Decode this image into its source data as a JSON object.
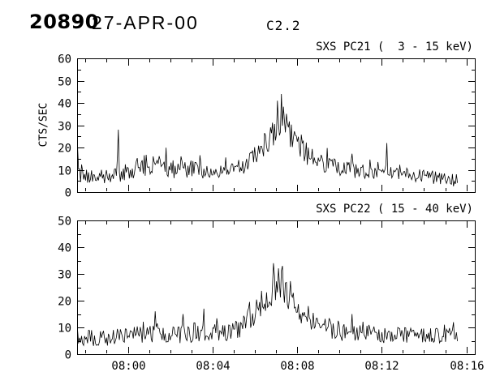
{
  "header": {
    "event_number": "20890",
    "date": "27-APR-00",
    "goes_class": "C2.2"
  },
  "chart_data": [
    {
      "type": "line",
      "series_name": "pc21-lightcurve",
      "title": "SXS PC21 (  3 - 15 keV)",
      "ylabel": "CTS/SEC",
      "ylim": [
        0,
        60
      ],
      "yticks": [
        0,
        10,
        20,
        30,
        40,
        50,
        60
      ],
      "ytick_labels": [
        "0",
        "10",
        "20",
        "30",
        "40",
        "50",
        "60"
      ],
      "yminor_step": 5,
      "xlim_minutes": [
        -2.4,
        16.4
      ],
      "xticks_minutes": [
        0,
        4,
        8,
        12,
        16
      ],
      "xtick_labels": [
        "08:00",
        "08:04",
        "08:08",
        "08:12",
        "08:16"
      ],
      "show_xtick_labels": false,
      "xminor_step_minutes": 1,
      "series_end_minute": 15.6,
      "sample_step_minutes": 0.047,
      "noise_seed": 20890,
      "line_color": "#000000",
      "grid": false,
      "envelope": [
        [
          -2.4,
          11,
          9
        ],
        [
          -2.15,
          7,
          3
        ],
        [
          -1.0,
          7,
          3
        ],
        [
          0.0,
          9,
          4
        ],
        [
          0.7,
          12,
          5
        ],
        [
          1.6,
          12,
          5
        ],
        [
          2.3,
          10,
          4
        ],
        [
          3.2,
          10,
          4
        ],
        [
          4.0,
          9,
          3
        ],
        [
          5.0,
          10,
          4
        ],
        [
          5.6,
          12,
          4
        ],
        [
          6.0,
          16,
          5
        ],
        [
          6.5,
          22,
          6
        ],
        [
          7.0,
          28,
          7
        ],
        [
          7.3,
          31,
          9
        ],
        [
          7.6,
          28,
          7
        ],
        [
          8.0,
          23,
          6
        ],
        [
          8.5,
          17,
          5
        ],
        [
          9.0,
          14,
          4
        ],
        [
          9.5,
          12,
          4
        ],
        [
          10.0,
          11,
          4
        ],
        [
          11.0,
          9,
          4
        ],
        [
          12.0,
          9,
          3
        ],
        [
          13.0,
          8,
          3
        ],
        [
          14.0,
          7,
          3
        ],
        [
          15.0,
          6,
          3
        ],
        [
          15.6,
          5,
          3
        ]
      ],
      "spikes": [
        [
          -2.37,
          20
        ],
        [
          -0.45,
          28
        ],
        [
          7.05,
          41
        ],
        [
          7.25,
          44
        ],
        [
          12.25,
          22
        ]
      ]
    },
    {
      "type": "line",
      "series_name": "pc22-lightcurve",
      "title": "SXS PC22 ( 15 - 40 keV)",
      "ylabel": "",
      "ylim": [
        0,
        50
      ],
      "yticks": [
        0,
        10,
        20,
        30,
        40,
        50
      ],
      "ytick_labels": [
        "0",
        "10",
        "20",
        "30",
        "40",
        "50"
      ],
      "yminor_step": 5,
      "xlim_minutes": [
        -2.4,
        16.4
      ],
      "xticks_minutes": [
        0,
        4,
        8,
        12,
        16
      ],
      "xtick_labels": [
        "08:00",
        "08:04",
        "08:08",
        "08:12",
        "08:16"
      ],
      "show_xtick_labels": true,
      "xminor_step_minutes": 1,
      "series_end_minute": 15.6,
      "sample_step_minutes": 0.047,
      "noise_seed": 20891,
      "line_color": "#000000",
      "grid": false,
      "envelope": [
        [
          -2.4,
          6,
          3
        ],
        [
          -1.0,
          6,
          3
        ],
        [
          0.0,
          7,
          3
        ],
        [
          1.0,
          8,
          4
        ],
        [
          2.0,
          8,
          4
        ],
        [
          3.0,
          8,
          4
        ],
        [
          4.0,
          8,
          3
        ],
        [
          5.0,
          9,
          4
        ],
        [
          5.6,
          12,
          5
        ],
        [
          6.0,
          16,
          5
        ],
        [
          6.5,
          21,
          6
        ],
        [
          7.0,
          24,
          7
        ],
        [
          7.4,
          25,
          7
        ],
        [
          7.8,
          21,
          6
        ],
        [
          8.3,
          15,
          5
        ],
        [
          9.0,
          11,
          4
        ],
        [
          10.0,
          9,
          4
        ],
        [
          11.0,
          8,
          3
        ],
        [
          12.0,
          7,
          3
        ],
        [
          13.0,
          7,
          3
        ],
        [
          14.0,
          7,
          3
        ],
        [
          15.0,
          7,
          3
        ],
        [
          15.6,
          7,
          3
        ]
      ],
      "spikes": [
        [
          1.3,
          16
        ],
        [
          2.6,
          15
        ],
        [
          3.6,
          17
        ],
        [
          6.9,
          34
        ],
        [
          7.3,
          33
        ],
        [
          10.6,
          15
        ]
      ]
    }
  ]
}
